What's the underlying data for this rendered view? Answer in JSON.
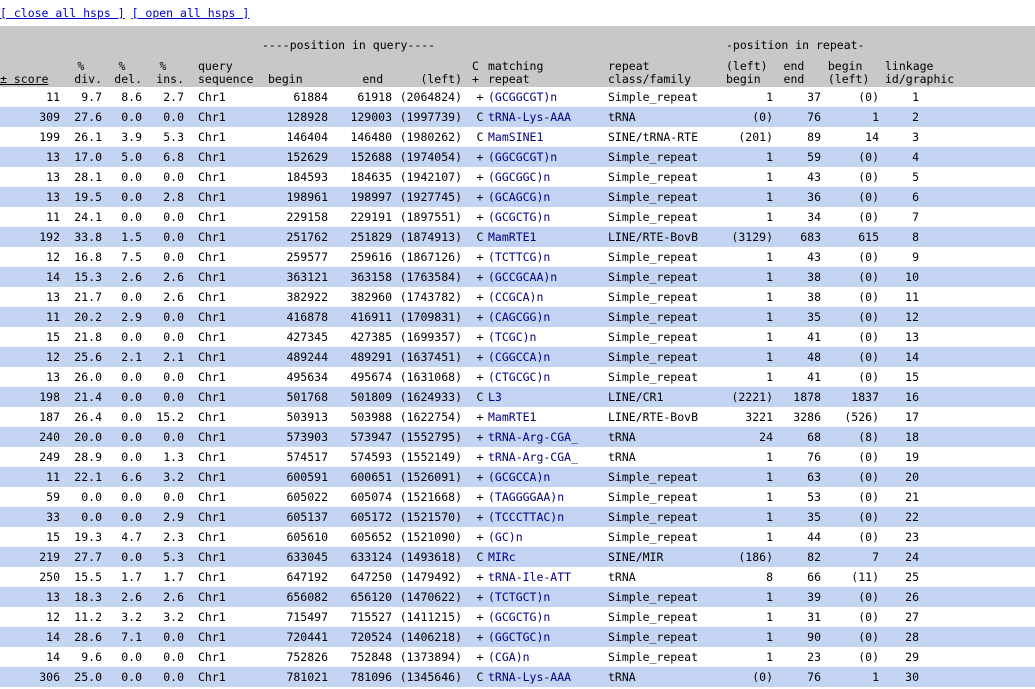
{
  "links": {
    "close": "[ close all hsps ]",
    "open": "[ open all hsps ]"
  },
  "header": {
    "position_in_query": "----position in query----",
    "position_in_repeat": "-position in repeat-",
    "score": [
      "",
      "",
      "± score"
    ],
    "div": [
      "%",
      "div."
    ],
    "del": [
      "%",
      "del."
    ],
    "ins": [
      "%",
      "ins."
    ],
    "qseq": [
      "query",
      "sequence"
    ],
    "qbegin": "begin",
    "qend": "end",
    "qleft": "(left)",
    "strand": [
      "C",
      "+"
    ],
    "matching": [
      "matching",
      "repeat"
    ],
    "class": [
      "repeat",
      "class/family"
    ],
    "rbegin": [
      "(left)",
      "begin"
    ],
    "rend": [
      "end",
      "end"
    ],
    "rleft": [
      "begin",
      "(left)"
    ],
    "link": [
      "linkage",
      "id/graphic"
    ]
  },
  "colors": {
    "header_bg": "#c8c8c8",
    "alt_row": "#c6d4f4",
    "link": "#0000cc",
    "repeat_text": "#00007a"
  },
  "rows": [
    [
      "11",
      "9.7",
      "8.6",
      "2.7",
      "Chr1",
      "61884",
      "61918",
      "(2064824)",
      "+",
      "(GCGGCGT)n",
      "Simple_repeat",
      "1",
      "37",
      "(0)",
      "1"
    ],
    [
      "309",
      "27.6",
      "0.0",
      "0.0",
      "Chr1",
      "128928",
      "129003",
      "(1997739)",
      "C",
      "tRNA-Lys-AAA",
      "tRNA",
      "(0)",
      "76",
      "1",
      "2"
    ],
    [
      "199",
      "26.1",
      "3.9",
      "5.3",
      "Chr1",
      "146404",
      "146480",
      "(1980262)",
      "C",
      "MamSINE1",
      "SINE/tRNA-RTE",
      "(201)",
      "89",
      "14",
      "3"
    ],
    [
      "13",
      "17.0",
      "5.0",
      "6.8",
      "Chr1",
      "152629",
      "152688",
      "(1974054)",
      "+",
      "(GGCGCGT)n",
      "Simple_repeat",
      "1",
      "59",
      "(0)",
      "4"
    ],
    [
      "13",
      "28.1",
      "0.0",
      "0.0",
      "Chr1",
      "184593",
      "184635",
      "(1942107)",
      "+",
      "(GGCGGC)n",
      "Simple_repeat",
      "1",
      "43",
      "(0)",
      "5"
    ],
    [
      "13",
      "19.5",
      "0.0",
      "2.8",
      "Chr1",
      "198961",
      "198997",
      "(1927745)",
      "+",
      "(GCAGCG)n",
      "Simple_repeat",
      "1",
      "36",
      "(0)",
      "6"
    ],
    [
      "11",
      "24.1",
      "0.0",
      "0.0",
      "Chr1",
      "229158",
      "229191",
      "(1897551)",
      "+",
      "(GCGCTG)n",
      "Simple_repeat",
      "1",
      "34",
      "(0)",
      "7"
    ],
    [
      "192",
      "33.8",
      "1.5",
      "0.0",
      "Chr1",
      "251762",
      "251829",
      "(1874913)",
      "C",
      "MamRTE1",
      "LINE/RTE-BovB",
      "(3129)",
      "683",
      "615",
      "8"
    ],
    [
      "12",
      "16.8",
      "7.5",
      "0.0",
      "Chr1",
      "259577",
      "259616",
      "(1867126)",
      "+",
      "(TCTTCG)n",
      "Simple_repeat",
      "1",
      "43",
      "(0)",
      "9"
    ],
    [
      "14",
      "15.3",
      "2.6",
      "2.6",
      "Chr1",
      "363121",
      "363158",
      "(1763584)",
      "+",
      "(GCCGCAA)n",
      "Simple_repeat",
      "1",
      "38",
      "(0)",
      "10"
    ],
    [
      "13",
      "21.7",
      "0.0",
      "2.6",
      "Chr1",
      "382922",
      "382960",
      "(1743782)",
      "+",
      "(CCGCA)n",
      "Simple_repeat",
      "1",
      "38",
      "(0)",
      "11"
    ],
    [
      "11",
      "20.2",
      "2.9",
      "0.0",
      "Chr1",
      "416878",
      "416911",
      "(1709831)",
      "+",
      "(CAGCGG)n",
      "Simple_repeat",
      "1",
      "35",
      "(0)",
      "12"
    ],
    [
      "15",
      "21.8",
      "0.0",
      "0.0",
      "Chr1",
      "427345",
      "427385",
      "(1699357)",
      "+",
      "(TCGC)n",
      "Simple_repeat",
      "1",
      "41",
      "(0)",
      "13"
    ],
    [
      "12",
      "25.6",
      "2.1",
      "2.1",
      "Chr1",
      "489244",
      "489291",
      "(1637451)",
      "+",
      "(CGGCCA)n",
      "Simple_repeat",
      "1",
      "48",
      "(0)",
      "14"
    ],
    [
      "13",
      "26.0",
      "0.0",
      "0.0",
      "Chr1",
      "495634",
      "495674",
      "(1631068)",
      "+",
      "(CTGCGC)n",
      "Simple_repeat",
      "1",
      "41",
      "(0)",
      "15"
    ],
    [
      "198",
      "21.4",
      "0.0",
      "0.0",
      "Chr1",
      "501768",
      "501809",
      "(1624933)",
      "C",
      "L3",
      "LINE/CR1",
      "(2221)",
      "1878",
      "1837",
      "16"
    ],
    [
      "187",
      "26.4",
      "0.0",
      "15.2",
      "Chr1",
      "503913",
      "503988",
      "(1622754)",
      "+",
      "MamRTE1",
      "LINE/RTE-BovB",
      "3221",
      "3286",
      "(526)",
      "17"
    ],
    [
      "240",
      "20.0",
      "0.0",
      "0.0",
      "Chr1",
      "573903",
      "573947",
      "(1552795)",
      "+",
      "tRNA-Arg-CGA_",
      "tRNA",
      "24",
      "68",
      "(8)",
      "18"
    ],
    [
      "249",
      "28.9",
      "0.0",
      "1.3",
      "Chr1",
      "574517",
      "574593",
      "(1552149)",
      "+",
      "tRNA-Arg-CGA_",
      "tRNA",
      "1",
      "76",
      "(0)",
      "19"
    ],
    [
      "11",
      "22.1",
      "6.6",
      "3.2",
      "Chr1",
      "600591",
      "600651",
      "(1526091)",
      "+",
      "(GCGCCA)n",
      "Simple_repeat",
      "1",
      "63",
      "(0)",
      "20"
    ],
    [
      "59",
      "0.0",
      "0.0",
      "0.0",
      "Chr1",
      "605022",
      "605074",
      "(1521668)",
      "+",
      "(TAGGGGAA)n",
      "Simple_repeat",
      "1",
      "53",
      "(0)",
      "21"
    ],
    [
      "33",
      "0.0",
      "0.0",
      "2.9",
      "Chr1",
      "605137",
      "605172",
      "(1521570)",
      "+",
      "(TCCCTTAC)n",
      "Simple_repeat",
      "1",
      "35",
      "(0)",
      "22"
    ],
    [
      "15",
      "19.3",
      "4.7",
      "2.3",
      "Chr1",
      "605610",
      "605652",
      "(1521090)",
      "+",
      "(GC)n",
      "Simple_repeat",
      "1",
      "44",
      "(0)",
      "23"
    ],
    [
      "219",
      "27.7",
      "0.0",
      "5.3",
      "Chr1",
      "633045",
      "633124",
      "(1493618)",
      "C",
      "MIRc",
      "SINE/MIR",
      "(186)",
      "82",
      "7",
      "24"
    ],
    [
      "250",
      "15.5",
      "1.7",
      "1.7",
      "Chr1",
      "647192",
      "647250",
      "(1479492)",
      "+",
      "tRNA-Ile-ATT",
      "tRNA",
      "8",
      "66",
      "(11)",
      "25"
    ],
    [
      "13",
      "18.3",
      "2.6",
      "2.6",
      "Chr1",
      "656082",
      "656120",
      "(1470622)",
      "+",
      "(TCTGCT)n",
      "Simple_repeat",
      "1",
      "39",
      "(0)",
      "26"
    ],
    [
      "12",
      "11.2",
      "3.2",
      "3.2",
      "Chr1",
      "715497",
      "715527",
      "(1411215)",
      "+",
      "(GCGCTG)n",
      "Simple_repeat",
      "1",
      "31",
      "(0)",
      "27"
    ],
    [
      "14",
      "28.6",
      "7.1",
      "0.0",
      "Chr1",
      "720441",
      "720524",
      "(1406218)",
      "+",
      "(GGCTGC)n",
      "Simple_repeat",
      "1",
      "90",
      "(0)",
      "28"
    ],
    [
      "14",
      "9.6",
      "0.0",
      "0.0",
      "Chr1",
      "752826",
      "752848",
      "(1373894)",
      "+",
      "(CGA)n",
      "Simple_repeat",
      "1",
      "23",
      "(0)",
      "29"
    ],
    [
      "306",
      "25.0",
      "0.0",
      "0.0",
      "Chr1",
      "781021",
      "781096",
      "(1345646)",
      "C",
      "tRNA-Lys-AAA",
      "tRNA",
      "(0)",
      "76",
      "1",
      "30"
    ]
  ]
}
